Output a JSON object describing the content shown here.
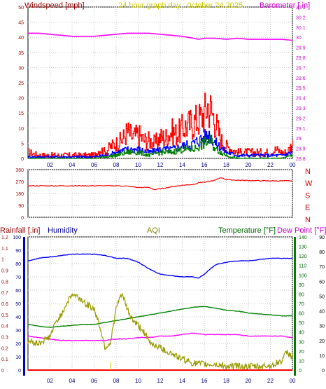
{
  "chart_data": [
    {
      "type": "line",
      "title": "24 hour graph day : 0ctober 24 2025",
      "x_ticks": [
        "02",
        "04",
        "06",
        "08",
        "10",
        "12",
        "14",
        "16",
        "18",
        "20",
        "22",
        "00"
      ],
      "left_axis": {
        "label": "Windspeed [mph]",
        "ticks": [
          "0",
          "5",
          "10",
          "15",
          "20",
          "25",
          "30",
          "35",
          "40",
          "45",
          "50"
        ],
        "range": [
          0,
          50
        ]
      },
      "right_axis": {
        "label": "Barometer [.in]",
        "ticks": [
          "28.8",
          "28.9",
          "29",
          "29.1",
          "29.2",
          "29.3",
          "29.4",
          "29.5",
          "29.6",
          "29.7",
          "29.8",
          "29.9",
          "30",
          "30.1",
          "30.2",
          "30.3"
        ],
        "range": [
          28.8,
          30.3
        ]
      },
      "grid": true,
      "series": [
        {
          "name": "Windspeed [mph]",
          "axis": "left",
          "color": "#ff0000",
          "style": "gust",
          "x": [
            0,
            1,
            2,
            3,
            4,
            5,
            6,
            6.5,
            7,
            7.5,
            8,
            8.5,
            9,
            9.5,
            10,
            10.5,
            11,
            11.5,
            12,
            12.5,
            13,
            13.5,
            14,
            14.5,
            15,
            15.5,
            16,
            16.3,
            16.6,
            17,
            17.5,
            18,
            18.5,
            19,
            19.5,
            20,
            20.5,
            21,
            21.5,
            22,
            22.5,
            23,
            23.5,
            24
          ],
          "y": [
            2,
            1,
            1,
            1,
            1,
            1,
            1,
            3,
            2,
            4,
            5,
            6,
            9,
            7,
            8,
            6,
            6,
            5,
            7,
            7,
            9,
            8,
            10,
            11,
            12,
            13,
            15,
            18,
            16,
            12,
            6,
            4,
            3,
            2,
            2,
            2,
            2,
            2,
            2,
            2,
            3,
            2,
            2,
            5
          ]
        },
        {
          "name": "",
          "axis": "left",
          "color": "#0000ff",
          "style": "average",
          "x": [
            0,
            6,
            7,
            8,
            9,
            10,
            11,
            12,
            13,
            14,
            15,
            15.5,
            16,
            16.5,
            17,
            18,
            19,
            20,
            21,
            22,
            23,
            24
          ],
          "y": [
            0.5,
            0.5,
            1,
            2,
            3,
            3,
            2,
            3,
            3,
            4,
            5,
            6,
            7,
            8,
            5,
            2,
            1,
            1,
            1,
            1,
            1,
            2
          ]
        },
        {
          "name": "",
          "axis": "left",
          "color": "#008000",
          "style": "low",
          "x": [
            0,
            6,
            7,
            8,
            9,
            10,
            11,
            12,
            13,
            14,
            15,
            15.5,
            16,
            16.5,
            17,
            18,
            19,
            20,
            21,
            22,
            23,
            24
          ],
          "y": [
            0,
            0,
            0.5,
            1,
            2,
            2,
            1,
            2,
            2,
            3,
            3,
            4,
            5,
            6,
            3,
            1,
            0,
            0,
            0,
            0,
            0,
            1
          ]
        },
        {
          "name": "Barometer [.in]",
          "axis": "right",
          "color": "#ff00ff",
          "style": "line",
          "x": [
            0,
            1,
            2,
            3,
            4,
            5,
            6,
            7,
            8,
            9,
            10,
            11,
            12,
            13,
            14,
            15,
            15.5,
            16,
            17,
            18,
            19,
            20,
            21,
            22,
            23,
            24
          ],
          "y": [
            30.04,
            30.04,
            30.03,
            30.02,
            30.01,
            30.01,
            30.01,
            30.02,
            30.03,
            30.04,
            30.04,
            30.04,
            30.03,
            30.02,
            30.01,
            29.99,
            29.98,
            29.99,
            29.99,
            29.98,
            29.99,
            29.98,
            29.98,
            29.98,
            29.98,
            29.97
          ]
        }
      ]
    },
    {
      "type": "line",
      "left_axis": {
        "ticks": [
          "0",
          "90",
          "180",
          "270",
          "360"
        ],
        "range": [
          0,
          360
        ]
      },
      "right_labels": [
        "N",
        "W",
        "S",
        "E",
        "N"
      ],
      "x_ticks": [],
      "grid": true,
      "series": [
        {
          "name": "",
          "axis": "left",
          "color": "#ff0000",
          "style": "line",
          "x": [
            0,
            1,
            2,
            3,
            4,
            5,
            6,
            7,
            8,
            9,
            10,
            11,
            11.5,
            12,
            13,
            14,
            15,
            15.5,
            16,
            16.5,
            17,
            17.5,
            18,
            19,
            20,
            21,
            22,
            23,
            24
          ],
          "y": [
            238,
            238,
            238,
            238,
            238,
            238,
            238,
            238,
            238,
            235,
            225,
            225,
            208,
            215,
            230,
            242,
            248,
            262,
            266,
            272,
            280,
            300,
            285,
            280,
            278,
            276,
            275,
            275,
            275
          ]
        }
      ]
    },
    {
      "type": "line",
      "left_axis_1": {
        "label": "Rainfall [.in]",
        "color": "#ff0000",
        "ticks": [
          "0",
          "0.1",
          "0.2",
          "0.3",
          "0.4",
          "0.5",
          "0.6",
          "0.7",
          "0.8",
          "0.9",
          "1",
          "1.1",
          "1.2"
        ],
        "range": [
          0,
          1.2
        ]
      },
      "left_axis_2": {
        "label": "Humidity",
        "color": "#0000ff",
        "ticks": [
          "0",
          "10",
          "20",
          "30",
          "40",
          "50",
          "60",
          "70",
          "80",
          "90",
          "100"
        ],
        "range": [
          0,
          100
        ]
      },
      "center_label": {
        "label": "AQI",
        "color": "#808000"
      },
      "right_axis_1": {
        "label": "Temperature [°F]",
        "color": "#008000",
        "ticks": [
          "0",
          "10",
          "20",
          "30",
          "40",
          "50",
          "60",
          "70",
          "80",
          "90",
          "100",
          "110",
          "120",
          "130",
          "140"
        ],
        "range": [
          0,
          140
        ]
      },
      "right_axis_2": {
        "label": "Dew Point [°F]",
        "color": "#ff00ff",
        "ticks": [
          "0",
          "10",
          "20",
          "30",
          "40",
          "50",
          "60",
          "70",
          "80",
          "90"
        ],
        "range": [
          0,
          90
        ]
      },
      "x_ticks": [
        "02",
        "04",
        "06",
        "08",
        "10",
        "12",
        "14",
        "16",
        "18",
        "20",
        "22",
        "00"
      ],
      "grid": true,
      "series": [
        {
          "name": "Humidity",
          "axis": "humidity",
          "color": "#0000ff",
          "style": "line",
          "x": [
            0,
            1,
            2,
            3,
            4,
            5,
            6,
            7,
            8,
            9,
            10,
            11,
            12,
            13,
            14,
            15,
            15.5,
            16,
            17,
            18,
            19,
            20,
            21,
            22,
            23,
            24
          ],
          "y": [
            82,
            84,
            85,
            86,
            87,
            87,
            87,
            86,
            84,
            84,
            81,
            76,
            72,
            71,
            70,
            70,
            69,
            72,
            79,
            81,
            82,
            82,
            83,
            84,
            84,
            84
          ],
          "label_color": "#000080"
        },
        {
          "name": "Temperature [°F]",
          "axis": "temperature",
          "color": "#008000",
          "style": "line",
          "x": [
            0,
            1,
            2,
            3,
            4,
            5,
            6,
            7,
            8,
            9,
            10,
            11,
            12,
            13,
            14,
            15,
            16,
            17,
            18,
            19,
            20,
            21,
            22,
            23,
            24
          ],
          "y": [
            48,
            46,
            45,
            46,
            47,
            48,
            48,
            50,
            52,
            54,
            56,
            58,
            60,
            62,
            64,
            66,
            67,
            65,
            63,
            62,
            60,
            59,
            58,
            57,
            57
          ]
        },
        {
          "name": "Dew Point [°F]",
          "axis": "dewpoint",
          "color": "#ff00ff",
          "style": "line",
          "x": [
            0,
            1,
            2,
            3,
            4,
            5,
            6,
            7,
            8,
            9,
            10,
            11,
            12,
            13,
            14,
            15,
            16,
            17,
            18,
            19,
            20,
            21,
            22,
            23,
            24
          ],
          "y": [
            23,
            22,
            21,
            20,
            20,
            20,
            20,
            20,
            21,
            21,
            22,
            22,
            23,
            23,
            24,
            25,
            24,
            24,
            24,
            24,
            23,
            23,
            23,
            23,
            22
          ]
        },
        {
          "name": "AQI",
          "axis": "rain_scale_aqi",
          "color": "#999900",
          "style": "noisy",
          "x": [
            0,
            1,
            2,
            2.5,
            3,
            3.5,
            4,
            4.5,
            5,
            5.5,
            6,
            6.5,
            7,
            7.5,
            8,
            8.5,
            9,
            9.5,
            10,
            10.5,
            11,
            12,
            13,
            14,
            15,
            16,
            17,
            18,
            19,
            20,
            21,
            22,
            23,
            23.5,
            24
          ],
          "y": [
            0.26,
            0.24,
            0.3,
            0.42,
            0.5,
            0.6,
            0.68,
            0.66,
            0.62,
            0.58,
            0.55,
            0.4,
            0.2,
            0.25,
            0.55,
            0.7,
            0.55,
            0.45,
            0.4,
            0.35,
            0.25,
            0.2,
            0.15,
            0.1,
            0.06,
            0.05,
            0.05,
            0.03,
            0.04,
            0.03,
            0.03,
            0.04,
            0.08,
            0.16,
            0.12
          ]
        },
        {
          "name": "Rainfall [.in]",
          "axis": "rain",
          "color": "#ff0000",
          "style": "line",
          "x": [
            0,
            24
          ],
          "y": [
            0,
            0
          ]
        }
      ]
    }
  ]
}
